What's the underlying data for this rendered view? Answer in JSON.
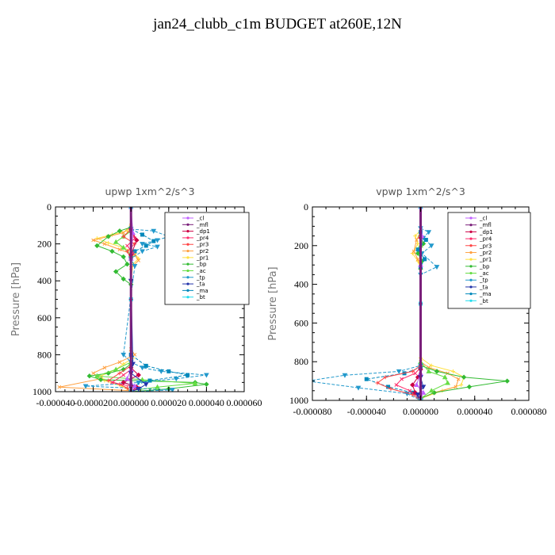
{
  "title": "jan24_clubb_c1m  BUDGET at260E,12N",
  "colors": {
    "cl": "#c060ff",
    "mfl": "#7a1f7a",
    "dp1": "#cc0044",
    "pr4": "#ff2b6a",
    "pr3": "#ff4444",
    "pr2": "#ffa040",
    "pr1": "#ffe040",
    "bp": "#33bb33",
    "ac": "#66dd44",
    "tp": "#2299cc",
    "ta": "#2233aa",
    "ma": "#0088bb",
    "bt": "#22ddee"
  },
  "chart_data": [
    {
      "type": "line",
      "title": "upwp   1xm^2/s^3",
      "ylabel": "Pressure [hPa]",
      "xlim": [
        -4e-05,
        6e-05
      ],
      "ylim": [
        1000,
        0
      ],
      "xticks": [
        "-0.000040",
        "-0.000020",
        "0.000000",
        "0.000020",
        "0.000040",
        "0.000060"
      ],
      "yticks": [
        "0",
        "200",
        "400",
        "600",
        "800",
        "1000"
      ],
      "legend_position": "top-right",
      "legend": [
        "_cl",
        "_mfl",
        "_dp1",
        "_pr4",
        "_pr3",
        "_pr2",
        "_pr1",
        "_bp",
        "_ac",
        "_tp",
        "_ta",
        "_ma",
        "_bt"
      ],
      "series": [
        {
          "name": "_pr1",
          "key": "pr1",
          "x": [
            0,
            -2e-06,
            -1e-05,
            -1.8e-05,
            -1.2e-05,
            -4e-06,
            2e-06,
            4e-06,
            1e-06,
            0,
            0,
            1e-06,
            -4e-06,
            -8e-06,
            -1.6e-05,
            -1.4e-05,
            -5e-06,
            0
          ],
          "y": [
            100,
            130,
            150,
            170,
            195,
            220,
            250,
            280,
            310,
            400,
            780,
            820,
            850,
            880,
            915,
            940,
            970,
            1000
          ]
        },
        {
          "name": "_pr2",
          "key": "pr2",
          "x": [
            0,
            -4e-06,
            -1.2e-05,
            -2e-05,
            -1.4e-05,
            -6e-06,
            2e-06,
            4e-06,
            0,
            0,
            2e-06,
            -6e-06,
            -1.4e-05,
            -2e-05,
            -1.6e-05,
            -3.8e-05,
            0
          ],
          "y": [
            100,
            140,
            160,
            180,
            200,
            230,
            260,
            290,
            330,
            770,
            800,
            840,
            870,
            900,
            930,
            975,
            995
          ]
        },
        {
          "name": "_bp",
          "key": "bp",
          "x": [
            0,
            -6e-06,
            -1.2e-05,
            -1.8e-05,
            -1e-05,
            -4e-06,
            -2e-06,
            -8e-06,
            -4e-06,
            0,
            0,
            -4e-06,
            -1.2e-05,
            -2.2e-05,
            -1.6e-05,
            3.4e-05,
            4e-05,
            2e-05,
            0
          ],
          "y": [
            110,
            130,
            160,
            210,
            240,
            270,
            310,
            350,
            390,
            420,
            850,
            880,
            900,
            915,
            935,
            950,
            960,
            985,
            1000
          ]
        },
        {
          "name": "_ac",
          "key": "ac",
          "x": [
            0,
            -4e-06,
            -8e-06,
            -4e-06,
            0,
            0,
            -8e-06,
            -1.8e-05,
            6e-06,
            3.4e-05,
            1.4e-05,
            0
          ],
          "y": [
            130,
            160,
            190,
            220,
            260,
            840,
            880,
            915,
            935,
            955,
            975,
            995
          ]
        },
        {
          "name": "_tp",
          "key": "tp",
          "x": [
            0,
            1.2e-05,
            2e-05,
            1.4e-05,
            6e-06,
            1.4e-05,
            6e-06,
            0,
            2e-06,
            -4e-06,
            0,
            6e-06,
            1.6e-05,
            4e-05,
            2.4e-05,
            4e-06,
            -2.4e-05,
            2.2e-05,
            0
          ],
          "y": [
            120,
            130,
            160,
            180,
            200,
            215,
            240,
            280,
            320,
            800,
            840,
            870,
            890,
            910,
            930,
            950,
            970,
            990,
            1000
          ]
        },
        {
          "name": "_ma",
          "key": "ma",
          "x": [
            0,
            6e-06,
            1.2e-05,
            8e-06,
            2e-06,
            0,
            0,
            8e-06,
            2e-05,
            3e-05,
            1e-05,
            0
          ],
          "y": [
            120,
            150,
            185,
            210,
            240,
            280,
            800,
            860,
            890,
            910,
            940,
            970
          ]
        },
        {
          "name": "_pr3",
          "key": "pr3",
          "x": [
            0,
            -4e-06,
            2e-06,
            -2e-06,
            0,
            0,
            -6e-06,
            -1.2e-05,
            -6e-06,
            -2e-06,
            0
          ],
          "y": [
            120,
            160,
            200,
            240,
            280,
            860,
            900,
            940,
            960,
            980,
            1000
          ]
        },
        {
          "name": "_pr4",
          "key": "pr4",
          "x": [
            0,
            2e-06,
            -2e-06,
            1e-06,
            0,
            0,
            -4e-06,
            -1e-05,
            4e-06,
            0
          ],
          "y": [
            130,
            170,
            210,
            250,
            280,
            880,
            910,
            950,
            980,
            1000
          ]
        },
        {
          "name": "_dp1",
          "key": "dp1",
          "x": [
            0,
            3e-06,
            0,
            0,
            4e-06,
            -4e-06,
            3e-06,
            0
          ],
          "y": [
            120,
            180,
            260,
            870,
            910,
            950,
            975,
            1000
          ]
        },
        {
          "name": "_cl",
          "key": "cl",
          "x": [
            0,
            1e-06,
            0,
            0,
            -2e-06,
            2e-06,
            0
          ],
          "y": [
            0,
            140,
            280,
            880,
            930,
            970,
            1000
          ]
        },
        {
          "name": "_ta",
          "key": "ta",
          "x": [
            0,
            0,
            1e-06,
            0,
            8e-06,
            4e-06,
            0
          ],
          "y": [
            0,
            400,
            850,
            900,
            960,
            985,
            1000
          ]
        },
        {
          "name": "_bt",
          "key": "bt",
          "x": [
            0,
            0,
            0
          ],
          "y": [
            0,
            500,
            1000
          ]
        },
        {
          "name": "_mfl",
          "key": "mfl",
          "x": [
            0,
            0,
            0
          ],
          "y": [
            0,
            500,
            1000
          ]
        }
      ]
    },
    {
      "type": "line",
      "title": "vpwp   1xm^2/s^3",
      "ylabel": "Pressure [hPa]",
      "xlim": [
        -8e-05,
        8e-05
      ],
      "ylim": [
        1000,
        0
      ],
      "xticks": [
        "-0.000080",
        "-0.000040",
        "0.000000",
        "0.000040",
        "0.000080"
      ],
      "yticks": [
        "0",
        "200",
        "400",
        "600",
        "800",
        "1000"
      ],
      "legend_position": "top-right",
      "legend": [
        "_cl",
        "_mfl",
        "_dp1",
        "_pr4",
        "_pr3",
        "_pr2",
        "_pr1",
        "_bp",
        "_ac",
        "_tp",
        "_ta",
        "_ma",
        "_bt"
      ],
      "series": [
        {
          "name": "_pr1",
          "key": "pr1",
          "x": [
            0,
            -4e-06,
            -2e-06,
            -6e-06,
            -2e-06,
            0,
            0,
            8e-06,
            2.4e-05,
            3.2e-05,
            3e-05,
            1.6e-05,
            0
          ],
          "y": [
            120,
            150,
            190,
            240,
            280,
            320,
            780,
            820,
            850,
            880,
            920,
            950,
            990
          ]
        },
        {
          "name": "_pr2",
          "key": "pr2",
          "x": [
            0,
            -3e-06,
            -5e-06,
            -2e-06,
            0,
            0,
            6e-06,
            2e-05,
            2.8e-05,
            2.6e-05,
            1e-05,
            0
          ],
          "y": [
            130,
            170,
            230,
            270,
            310,
            800,
            830,
            860,
            890,
            930,
            960,
            990
          ]
        },
        {
          "name": "_bp",
          "key": "bp",
          "x": [
            0,
            2e-06,
            -2e-06,
            1e-06,
            0,
            0,
            1.2e-05,
            3.2e-05,
            6.4e-05,
            3.6e-05,
            1e-05,
            0
          ],
          "y": [
            150,
            190,
            240,
            280,
            320,
            820,
            850,
            880,
            900,
            930,
            960,
            990
          ]
        },
        {
          "name": "_ac",
          "key": "ac",
          "x": [
            0,
            0,
            6e-06,
            1.8e-05,
            2e-05,
            8e-06,
            0
          ],
          "y": [
            200,
            800,
            850,
            880,
            910,
            950,
            990
          ]
        },
        {
          "name": "_tp",
          "key": "tp",
          "x": [
            0,
            6e-06,
            2e-06,
            8e-06,
            1e-06,
            1.2e-05,
            0,
            0,
            -1.6e-05,
            -5.6e-05,
            -8.4e-05,
            -4.6e-05,
            -1e-05,
            0
          ],
          "y": [
            110,
            130,
            160,
            200,
            240,
            310,
            350,
            820,
            850,
            870,
            900,
            935,
            965,
            1000
          ]
        },
        {
          "name": "_ma",
          "key": "ma",
          "x": [
            0,
            4e-06,
            -2e-06,
            3e-06,
            0,
            0,
            -1.2e-05,
            -4e-05,
            -2.4e-05,
            -6e-06,
            0
          ],
          "y": [
            130,
            170,
            220,
            270,
            310,
            830,
            860,
            890,
            930,
            960,
            1000
          ]
        },
        {
          "name": "_pr3",
          "key": "pr3",
          "x": [
            0,
            0,
            -6e-06,
            -2.6e-05,
            -3.2e-05,
            -2.2e-05,
            -6e-06,
            0
          ],
          "y": [
            150,
            820,
            850,
            880,
            910,
            940,
            970,
            1000
          ]
        },
        {
          "name": "_pr4",
          "key": "pr4",
          "x": [
            0,
            0,
            -4e-06,
            -1.4e-05,
            -1.8e-05,
            -8e-06,
            0
          ],
          "y": [
            150,
            830,
            860,
            890,
            920,
            950,
            990
          ]
        },
        {
          "name": "_dp1",
          "key": "dp1",
          "x": [
            0,
            0,
            -2e-06,
            -6e-06,
            -4e-06,
            0
          ],
          "y": [
            160,
            840,
            880,
            920,
            960,
            1000
          ]
        },
        {
          "name": "_cl",
          "key": "cl",
          "x": [
            0,
            1e-06,
            0,
            0,
            -3e-06,
            2e-06,
            0
          ],
          "y": [
            0,
            150,
            300,
            860,
            920,
            960,
            1000
          ]
        },
        {
          "name": "_ta",
          "key": "ta",
          "x": [
            0,
            0,
            2e-06,
            -2e-06,
            0
          ],
          "y": [
            0,
            880,
            930,
            970,
            1000
          ]
        },
        {
          "name": "_bt",
          "key": "bt",
          "x": [
            0,
            0,
            0
          ],
          "y": [
            0,
            500,
            1000
          ]
        },
        {
          "name": "_mfl",
          "key": "mfl",
          "x": [
            0,
            0,
            0
          ],
          "y": [
            0,
            500,
            1000
          ]
        }
      ]
    }
  ]
}
